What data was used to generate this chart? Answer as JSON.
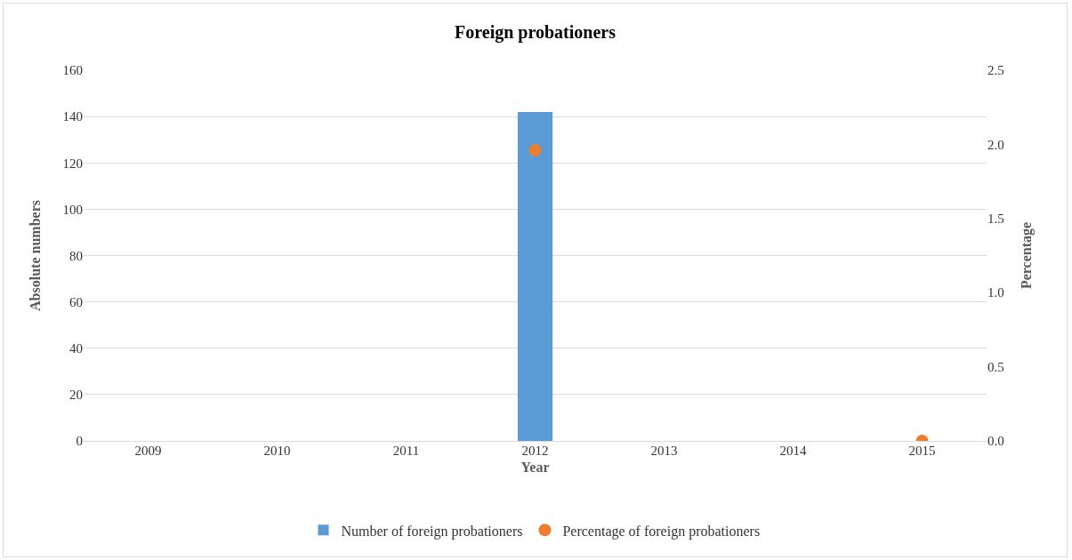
{
  "chart_data": {
    "type": "bar",
    "title": "Foreign probationers",
    "xlabel": "Year",
    "ylabel": "Absolute numbers",
    "y2label": "Percentage",
    "categories": [
      "2009",
      "2010",
      "2011",
      "2012",
      "2013",
      "2014",
      "2015"
    ],
    "series": [
      {
        "name": "Number of foreign probationers",
        "color": "#5b9bd5",
        "values": [
          null,
          null,
          null,
          142,
          null,
          null,
          null
        ]
      },
      {
        "name": "Percentage of foreign probationers",
        "type": "scatter",
        "axis": "y2",
        "color": "#ed7d31",
        "marker": "circle",
        "values": [
          null,
          null,
          null,
          1.96,
          null,
          null,
          0.0
        ]
      }
    ],
    "ylim": [
      0,
      160
    ],
    "yticks": [
      0,
      20,
      40,
      60,
      80,
      100,
      120,
      140,
      160
    ],
    "y2lim": [
      0,
      2.5
    ],
    "y2ticks": [
      {
        "value": 0,
        "label": "0.0"
      },
      {
        "value": 0.5,
        "label": "0.5"
      },
      {
        "value": 1,
        "label": "1.0"
      },
      {
        "value": 1.5,
        "label": "1.5"
      },
      {
        "value": 2,
        "label": "2.0"
      },
      {
        "value": 2.5,
        "label": "2.5"
      }
    ],
    "grid": "y",
    "legend": "bottom"
  }
}
